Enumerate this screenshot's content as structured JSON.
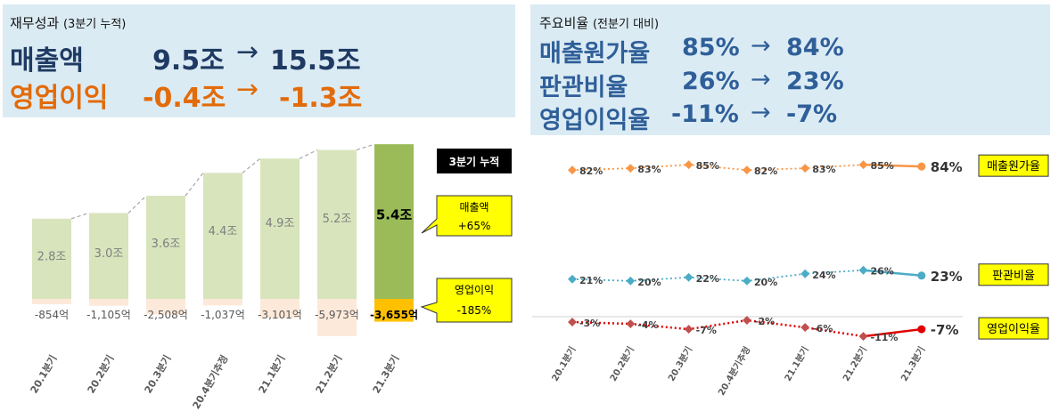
{
  "left_panel": {
    "title": "재무성과",
    "subtitle": "(3분기 누적)",
    "rows": [
      {
        "label": "매출액",
        "from": "9.5조",
        "arrow": "→",
        "to": "15.5조",
        "color": "#1f3b63"
      },
      {
        "label": "영업이익",
        "from": "-0.4조",
        "arrow": "→",
        "to": "-1.3조",
        "color": "#e26b0a"
      }
    ]
  },
  "right_panel": {
    "title": "주요비율",
    "subtitle": "(전분기 대비)",
    "rows": [
      {
        "label": "매출원가율",
        "from": "85%",
        "arrow": "→",
        "to": "84%"
      },
      {
        "label": "판관비율",
        "from": "26%",
        "arrow": "→",
        "to": "23%"
      },
      {
        "label": "영업이익율",
        "from": "-11%",
        "arrow": "→",
        "to": "-7%"
      }
    ]
  },
  "chart_data": [
    {
      "type": "bar",
      "categories": [
        "20.1분기",
        "20.2분기",
        "20.3분기",
        "20.4분기추정",
        "21.1분기",
        "21.2분기",
        "21.3분기"
      ],
      "series": [
        {
          "values": [
            2.8,
            3.0,
            3.6,
            4.4,
            4.9,
            5.2,
            5.4
          ],
          "labels": [
            "2.8조",
            "3.0조",
            "3.6조",
            "4.4조",
            "4.9조",
            "5.2조",
            "5.4조"
          ],
          "colors": [
            "#d8e4bc",
            "#d8e4bc",
            "#d8e4bc",
            "#d8e4bc",
            "#d8e4bc",
            "#d8e4bc",
            "#9bbb59"
          ]
        },
        {
          "values": [
            -854,
            -1105,
            -2508,
            -1037,
            -3101,
            -5973,
            -3655
          ],
          "labels": [
            "-854억",
            "-1,105억",
            "-2,508억",
            "-1,037억",
            "-3,101억",
            "-5,973억",
            "-3,655억"
          ],
          "colors": [
            "#fde9d9",
            "#fde9d9",
            "#fde9d9",
            "#fde9d9",
            "#fde9d9",
            "#fde9d9",
            "#ffc000"
          ]
        }
      ],
      "badge": "3분기 누적",
      "callouts": [
        {
          "title": "매출액",
          "value": "+65%"
        },
        {
          "title": "영업이익",
          "value": "-185%"
        }
      ]
    },
    {
      "type": "line",
      "categories": [
        "20.1분기",
        "20.2분기",
        "20.3분기",
        "20.4분기추정",
        "21.1분기",
        "21.2분기",
        "21.3분기"
      ],
      "series": [
        {
          "name": "매출원가율",
          "values": [
            82,
            83,
            85,
            82,
            83,
            85,
            84
          ],
          "labels": [
            "82%",
            "83%",
            "85%",
            "82%",
            "83%",
            "85%",
            "84%"
          ],
          "color": "#f79646"
        },
        {
          "name": "판관비율",
          "values": [
            21,
            20,
            22,
            20,
            24,
            26,
            23
          ],
          "labels": [
            "21%",
            "20%",
            "22%",
            "20%",
            "24%",
            "26%",
            "23%"
          ],
          "color": "#4bacc6"
        },
        {
          "name": "영업이익율",
          "values": [
            -3,
            -4,
            -7,
            -2,
            -6,
            -11,
            -7
          ],
          "labels": [
            "-3%",
            "-4%",
            "-7%",
            "-2%",
            "-6%",
            "-11%",
            "-7%"
          ],
          "color": "#c0504d",
          "highlight": "#e00000"
        }
      ]
    }
  ]
}
